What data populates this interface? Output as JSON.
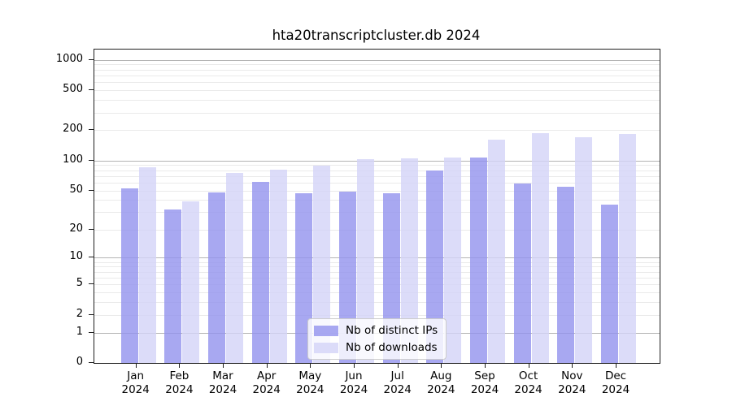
{
  "chart_data": {
    "type": "bar",
    "title": "hta20transcriptcluster.db 2024",
    "categories": [
      "Jan 2024",
      "Feb 2024",
      "Mar 2024",
      "Apr 2024",
      "May 2024",
      "Jun 2024",
      "Jul 2024",
      "Aug 2024",
      "Sep 2024",
      "Oct 2024",
      "Nov 2024",
      "Dec 2024"
    ],
    "series": [
      {
        "name": "Nb of distinct IPs",
        "color": "#9292ed",
        "values": [
          52,
          32,
          48,
          61,
          47,
          49,
          47,
          79,
          107,
          59,
          54,
          36
        ]
      },
      {
        "name": "Nb of downloads",
        "color": "#d3d3f7",
        "values": [
          85,
          39,
          75,
          81,
          88,
          103,
          105,
          108,
          160,
          186,
          170,
          185
        ]
      }
    ],
    "bar_alpha": 0.8,
    "yticks": [
      1000,
      500,
      200,
      100,
      50,
      20,
      10,
      5,
      2,
      1,
      0
    ],
    "ylabel": "",
    "xlabel": "",
    "ylim": [
      0,
      1263
    ],
    "yscale": "log1p",
    "grid": true,
    "legend_position": "lower center"
  }
}
